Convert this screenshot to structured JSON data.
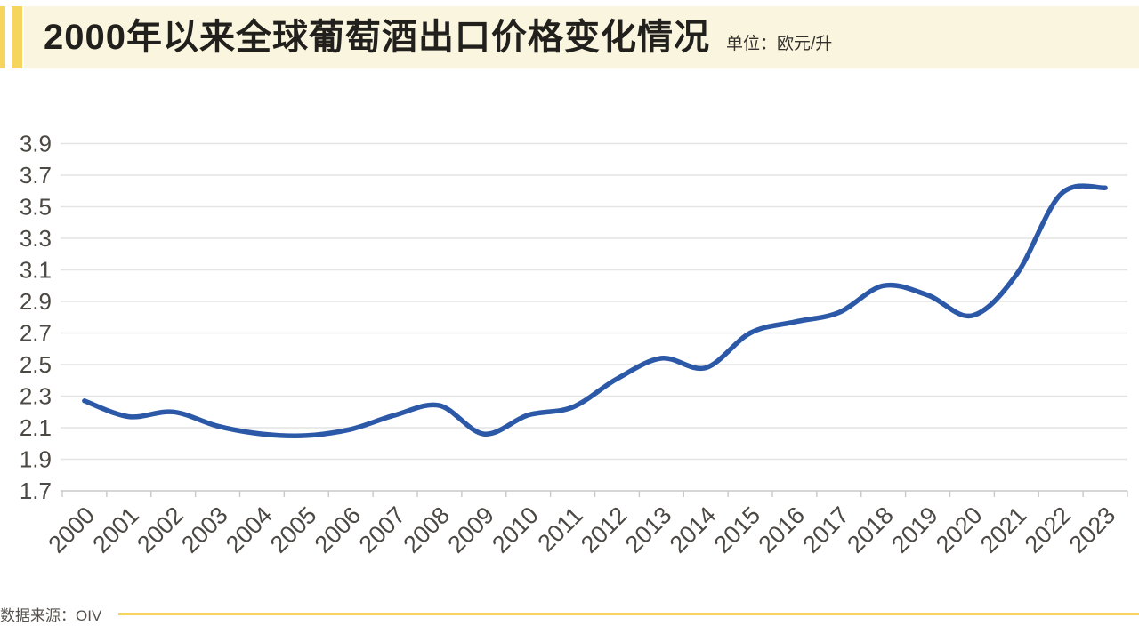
{
  "header": {
    "unit": "单位：欧元/升",
    "band_bg": "#faf5de",
    "accent_yellow": "#f6d55f"
  },
  "footer": {
    "source": "数据来源：OIV"
  },
  "chart_data": {
    "type": "line",
    "title": "2000年以来全球葡萄酒出口价格变化情况",
    "unit": "欧元/升",
    "source": "OIV",
    "categories": [
      "2000",
      "2001",
      "2002",
      "2003",
      "2004",
      "2005",
      "2006",
      "2007",
      "2008",
      "2009",
      "2010",
      "2011",
      "2012",
      "2013",
      "2014",
      "2015",
      "2016",
      "2017",
      "2018",
      "2019",
      "2020",
      "2021",
      "2022",
      "2023"
    ],
    "values": [
      2.27,
      2.17,
      2.2,
      2.11,
      2.06,
      2.05,
      2.09,
      2.18,
      2.24,
      2.06,
      2.18,
      2.23,
      2.41,
      2.54,
      2.48,
      2.7,
      2.77,
      2.83,
      3.0,
      2.94,
      2.81,
      3.07,
      3.58,
      3.62
    ],
    "ylim": [
      1.7,
      3.9
    ],
    "ytick_step": 0.2,
    "ytick_labels": [
      "1.7",
      "1.9",
      "2.1",
      "2.3",
      "2.5",
      "2.7",
      "2.9",
      "3.1",
      "3.3",
      "3.5",
      "3.7",
      "3.9"
    ],
    "xlabel": "",
    "ylabel": "",
    "grid": true,
    "legend": "none",
    "smooth": true,
    "line_color": "#2b58a7",
    "grid_color": "#e4e4e4",
    "axis_color": "#c9c9c9",
    "tick_label_color": "#4c4844"
  }
}
